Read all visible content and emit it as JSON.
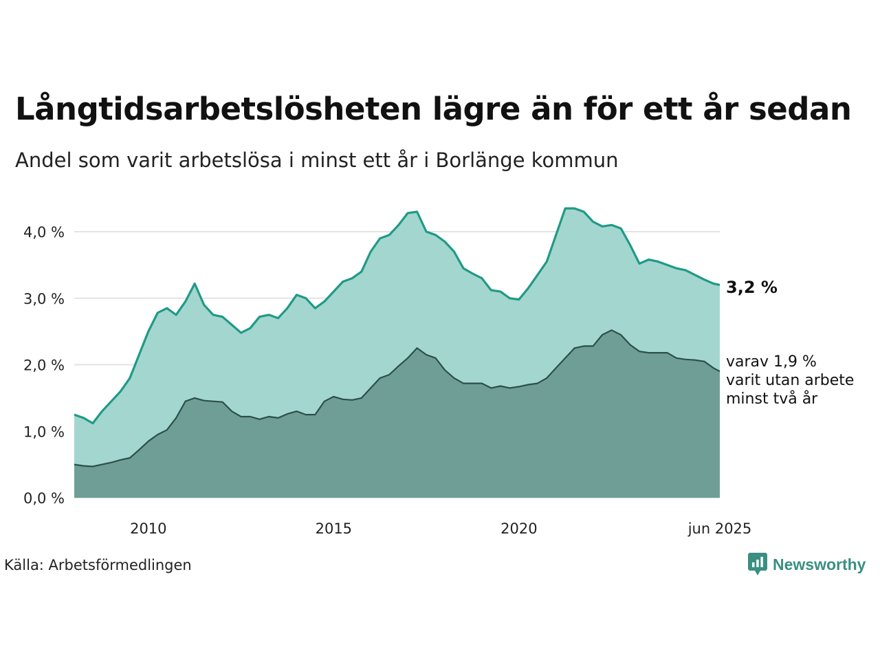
{
  "title": "Långtidsarbetslösheten lägre än för ett år sedan",
  "subtitle": "Andel som varit arbetslösa i minst ett år i Borlänge kommun",
  "source": "Källa: Arbetsförmedlingen",
  "brand": "Newsworthy",
  "end_label_main": "3,2 %",
  "end_label_sub": [
    "varav 1,9 %",
    "varit utan arbete",
    "minst två år"
  ],
  "colors": {
    "main_fill": "#a3d6cf",
    "main_line": "#1f9a86",
    "sub_fill": "#6f9e97",
    "sub_line": "#2c4f4a",
    "grid": "#e3e3e3",
    "brand": "#3a8f82"
  },
  "chart_data": {
    "type": "area",
    "title": "Långtidsarbetslösheten lägre än för ett år sedan",
    "subtitle": "Andel som varit arbetslösa i minst ett år i Borlänge kommun",
    "xlabel": "",
    "ylabel": "",
    "ylim": [
      0,
      4.5
    ],
    "yticks": [
      0,
      1,
      2,
      3,
      4
    ],
    "ytick_labels": [
      "0,0 %",
      "1,0 %",
      "2,0 %",
      "3,0 %",
      "4,0 %"
    ],
    "xticks": [
      2010,
      2015,
      2020,
      2025.42
    ],
    "xtick_labels": [
      "2010",
      "2015",
      "2020",
      "jun 2025"
    ],
    "xlim": [
      2008.0,
      2025.42
    ],
    "grid": true,
    "legend": "none",
    "series": [
      {
        "name": "Andel som varit arbetslösa i minst ett år",
        "x": [
          2008.0,
          2008.25,
          2008.5,
          2008.75,
          2009.0,
          2009.25,
          2009.5,
          2009.75,
          2010.0,
          2010.25,
          2010.5,
          2010.75,
          2011.0,
          2011.25,
          2011.5,
          2011.75,
          2012.0,
          2012.25,
          2012.5,
          2012.75,
          2013.0,
          2013.25,
          2013.5,
          2013.75,
          2014.0,
          2014.25,
          2014.5,
          2014.75,
          2015.0,
          2015.25,
          2015.5,
          2015.75,
          2016.0,
          2016.25,
          2016.5,
          2016.75,
          2017.0,
          2017.25,
          2017.5,
          2017.75,
          2018.0,
          2018.25,
          2018.5,
          2018.75,
          2019.0,
          2019.25,
          2019.5,
          2019.75,
          2020.0,
          2020.25,
          2020.5,
          2020.75,
          2021.0,
          2021.25,
          2021.5,
          2021.75,
          2022.0,
          2022.25,
          2022.5,
          2022.75,
          2023.0,
          2023.25,
          2023.5,
          2023.75,
          2024.0,
          2024.25,
          2024.5,
          2024.75,
          2025.0,
          2025.25,
          2025.42
        ],
        "values": [
          1.25,
          1.2,
          1.12,
          1.3,
          1.45,
          1.6,
          1.8,
          2.15,
          2.5,
          2.78,
          2.85,
          2.75,
          2.95,
          3.22,
          2.9,
          2.75,
          2.72,
          2.6,
          2.48,
          2.55,
          2.72,
          2.75,
          2.7,
          2.85,
          3.05,
          3.0,
          2.85,
          2.95,
          3.1,
          3.25,
          3.3,
          3.4,
          3.7,
          3.9,
          3.95,
          4.1,
          4.28,
          4.3,
          4.0,
          3.95,
          3.85,
          3.7,
          3.45,
          3.37,
          3.3,
          3.12,
          3.1,
          3.0,
          2.98,
          3.15,
          3.35,
          3.55,
          3.95,
          4.35,
          4.35,
          4.3,
          4.15,
          4.08,
          4.1,
          4.05,
          3.8,
          3.52,
          3.58,
          3.55,
          3.5,
          3.45,
          3.42,
          3.35,
          3.28,
          3.22,
          3.2
        ]
      },
      {
        "name": "varit utan arbete minst två år",
        "x": [
          2008.0,
          2008.25,
          2008.5,
          2008.75,
          2009.0,
          2009.25,
          2009.5,
          2009.75,
          2010.0,
          2010.25,
          2010.5,
          2010.75,
          2011.0,
          2011.25,
          2011.5,
          2011.75,
          2012.0,
          2012.25,
          2012.5,
          2012.75,
          2013.0,
          2013.25,
          2013.5,
          2013.75,
          2014.0,
          2014.25,
          2014.5,
          2014.75,
          2015.0,
          2015.25,
          2015.5,
          2015.75,
          2016.0,
          2016.25,
          2016.5,
          2016.75,
          2017.0,
          2017.25,
          2017.5,
          2017.75,
          2018.0,
          2018.25,
          2018.5,
          2018.75,
          2019.0,
          2019.25,
          2019.5,
          2019.75,
          2020.0,
          2020.25,
          2020.5,
          2020.75,
          2021.0,
          2021.25,
          2021.5,
          2021.75,
          2022.0,
          2022.25,
          2022.5,
          2022.75,
          2023.0,
          2023.25,
          2023.5,
          2023.75,
          2024.0,
          2024.25,
          2024.5,
          2024.75,
          2025.0,
          2025.25,
          2025.42
        ],
        "values": [
          0.5,
          0.48,
          0.47,
          0.5,
          0.53,
          0.57,
          0.6,
          0.72,
          0.85,
          0.95,
          1.02,
          1.2,
          1.45,
          1.5,
          1.46,
          1.45,
          1.44,
          1.3,
          1.22,
          1.22,
          1.18,
          1.22,
          1.2,
          1.26,
          1.3,
          1.25,
          1.25,
          1.45,
          1.52,
          1.48,
          1.47,
          1.5,
          1.65,
          1.8,
          1.85,
          1.98,
          2.1,
          2.25,
          2.15,
          2.1,
          1.92,
          1.8,
          1.72,
          1.72,
          1.72,
          1.65,
          1.68,
          1.65,
          1.67,
          1.7,
          1.72,
          1.8,
          1.95,
          2.1,
          2.25,
          2.28,
          2.28,
          2.45,
          2.52,
          2.45,
          2.3,
          2.2,
          2.18,
          2.18,
          2.18,
          2.1,
          2.08,
          2.07,
          2.05,
          1.95,
          1.9
        ]
      }
    ],
    "annotations": [
      "3,2 %",
      "varav 1,9 %",
      "varit utan arbete",
      "minst två år"
    ]
  }
}
